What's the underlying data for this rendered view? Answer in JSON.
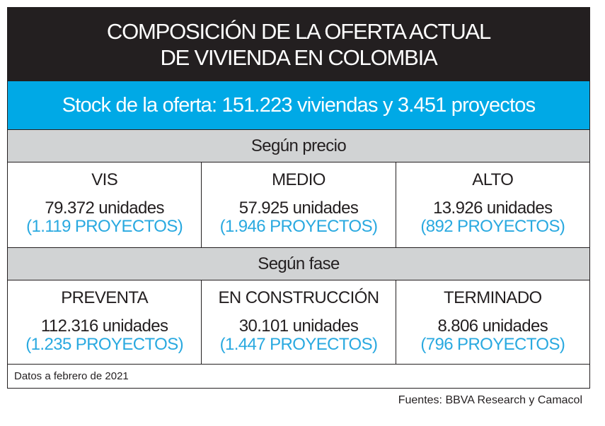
{
  "title_line1": "COMPOSICIÓN DE LA OFERTA ACTUAL",
  "title_line2": "DE VIVIENDA EN COLOMBIA",
  "stock": "Stock de la oferta: 151.223 viviendas y 3.451 proyectos",
  "sections": [
    {
      "label": "Según precio",
      "cells": [
        {
          "category": "VIS",
          "units": "79.372 unidades",
          "projects": "(1.119 PROYECTOS)"
        },
        {
          "category": "MEDIO",
          "units": "57.925 unidades",
          "projects": "(1.946 PROYECTOS)"
        },
        {
          "category": "ALTO",
          "units": "13.926 unidades",
          "projects": "(892 PROYECTOS)"
        }
      ]
    },
    {
      "label": "Según fase",
      "cells": [
        {
          "category": "PREVENTA",
          "units": "112.316 unidades",
          "projects": "(1.235 PROYECTOS)"
        },
        {
          "category": "EN CONSTRUCCIÓN",
          "units": "30.101 unidades",
          "projects": "(1.447 PROYECTOS)"
        },
        {
          "category": "TERMINADO",
          "units": "8.806 unidades",
          "projects": "(796 PROYECTOS)"
        }
      ]
    }
  ],
  "note": "Datos a febrero de 2021",
  "sources": "Fuentes: BBVA Research y Camacol",
  "colors": {
    "title_bg": "#231f20",
    "stock_bg": "#00a9e6",
    "section_bg": "#d1d3d4",
    "projects_text": "#29a9e0"
  }
}
